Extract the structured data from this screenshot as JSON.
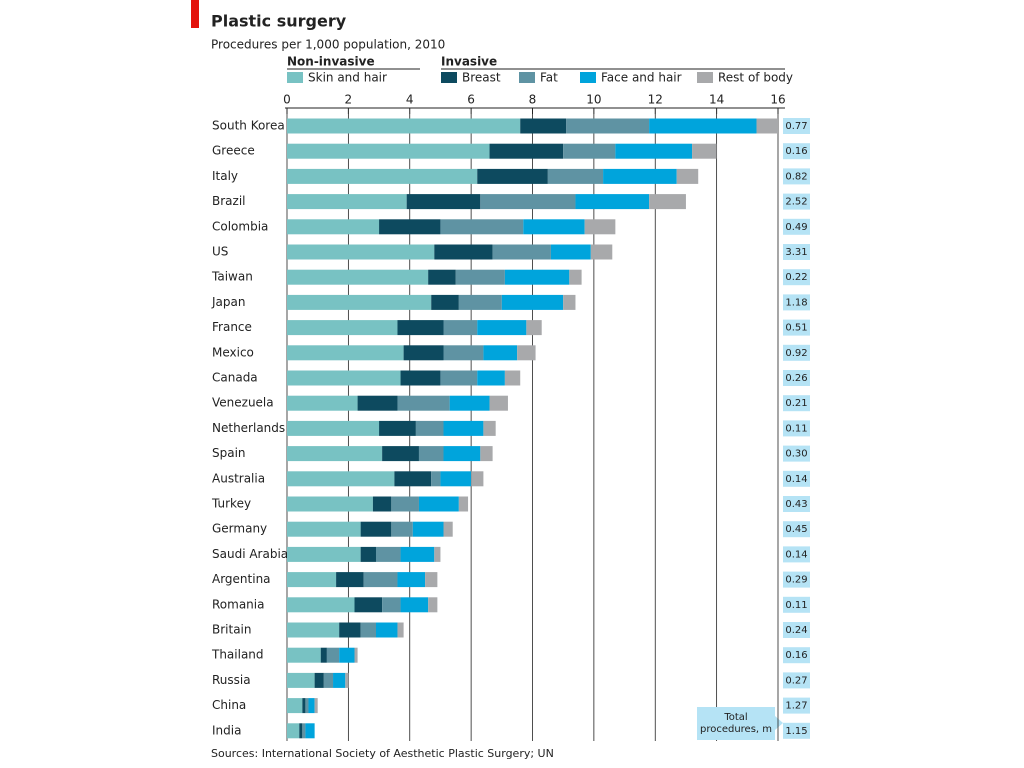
{
  "chart_data": {
    "type": "stacked-bar-horizontal",
    "title": "Plastic surgery",
    "subtitle": "Procedures per 1,000 population, 2010",
    "source": "Sources: International Society of Aesthetic Plastic Surgery; UN",
    "legend_group_titles": [
      "Non-invasive",
      "Invasive"
    ],
    "categories": [
      "South Korea",
      "Greece",
      "Italy",
      "Brazil",
      "Colombia",
      "US",
      "Taiwan",
      "Japan",
      "France",
      "Mexico",
      "Canada",
      "Venezuela",
      "Netherlands",
      "Spain",
      "Australia",
      "Turkey",
      "Germany",
      "Saudi Arabia",
      "Argentina",
      "Romania",
      "Britain",
      "Thailand",
      "Russia",
      "China",
      "India"
    ],
    "series": [
      {
        "name": "Skin and hair",
        "color": "#78c2c3",
        "values": [
          7.6,
          6.6,
          6.2,
          3.9,
          3.0,
          4.8,
          4.6,
          4.7,
          3.6,
          3.8,
          3.7,
          2.3,
          3.0,
          3.1,
          3.5,
          2.8,
          2.4,
          2.4,
          1.6,
          2.2,
          1.7,
          1.1,
          0.9,
          0.5,
          0.4
        ]
      },
      {
        "name": "Breast",
        "color": "#0d4a5f",
        "values": [
          1.5,
          2.4,
          2.3,
          2.4,
          2.0,
          1.9,
          0.9,
          0.9,
          1.5,
          1.3,
          1.3,
          1.3,
          1.2,
          1.2,
          1.2,
          0.6,
          1.0,
          0.5,
          0.9,
          0.9,
          0.7,
          0.2,
          0.3,
          0.1,
          0.1
        ]
      },
      {
        "name": "Fat",
        "color": "#5f93a3",
        "values": [
          2.7,
          1.7,
          1.8,
          3.1,
          2.7,
          1.9,
          1.6,
          1.4,
          1.1,
          1.3,
          1.2,
          1.7,
          0.9,
          0.8,
          0.3,
          0.9,
          0.7,
          0.8,
          1.1,
          0.6,
          0.5,
          0.4,
          0.3,
          0.1,
          0.1
        ]
      },
      {
        "name": "Face and hair",
        "color": "#00a4dc",
        "values": [
          3.5,
          2.5,
          2.4,
          2.4,
          2.0,
          1.3,
          2.1,
          2.0,
          1.6,
          1.1,
          0.9,
          1.3,
          1.3,
          1.2,
          1.0,
          1.3,
          1.0,
          1.1,
          0.9,
          0.9,
          0.7,
          0.5,
          0.4,
          0.2,
          0.3
        ]
      },
      {
        "name": "Rest of body",
        "color": "#a8a9ab",
        "values": [
          0.7,
          0.8,
          0.7,
          1.2,
          1.0,
          0.7,
          0.4,
          0.4,
          0.5,
          0.6,
          0.5,
          0.6,
          0.4,
          0.4,
          0.4,
          0.3,
          0.3,
          0.2,
          0.4,
          0.3,
          0.2,
          0.1,
          0.1,
          0.1,
          0.0
        ]
      }
    ],
    "xlim": [
      0,
      16
    ],
    "xticks": [
      0,
      2,
      4,
      6,
      8,
      10,
      12,
      14,
      16
    ],
    "grid": true,
    "totals": {
      "header": "Total procedures, m",
      "color": "#b5e3f5",
      "values": [
        0.77,
        0.16,
        0.82,
        2.52,
        0.49,
        3.31,
        0.22,
        1.18,
        0.51,
        0.92,
        0.26,
        0.21,
        0.11,
        0.3,
        0.14,
        0.43,
        0.45,
        0.14,
        0.29,
        0.11,
        0.24,
        0.16,
        0.27,
        1.27,
        1.15
      ],
      "value_labels": [
        "0.77",
        "0.16",
        "0.82",
        "2.52",
        "0.49",
        "3.31",
        "0.22",
        "1.18",
        "0.51",
        "0.92",
        "0.26",
        "0.21",
        "0.11",
        "0.30",
        "0.14",
        "0.43",
        "0.45",
        "0.14",
        "0.29",
        "0.11",
        "0.24",
        "0.16",
        "0.27",
        "1.27",
        "1.15"
      ]
    }
  }
}
